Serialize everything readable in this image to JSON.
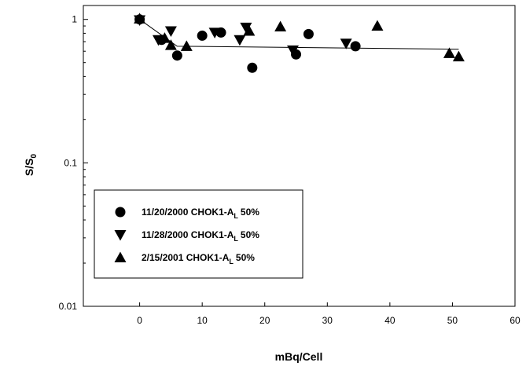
{
  "chart_data": {
    "type": "scatter",
    "xlabel": "mBq/Cell",
    "ylabel_main": "S/S",
    "ylabel_sub": "0",
    "x_ticks": [
      0,
      10,
      20,
      30,
      40,
      50,
      60
    ],
    "y_ticks": [
      0.01,
      0.1,
      1
    ],
    "xlim": [
      -9,
      60
    ],
    "ylim": [
      0.01,
      1.25
    ],
    "y_scale": "log",
    "grid": false,
    "legend_position": "bottom-left",
    "series": [
      {
        "name": "11/20/2000 CHOK1-A",
        "name_sub": "L",
        "name_suffix": "50%",
        "marker": "circle",
        "x": [
          0,
          3.5,
          6,
          10,
          13,
          18,
          25,
          27,
          34.5
        ],
        "y": [
          1.0,
          0.72,
          0.56,
          0.77,
          0.81,
          0.46,
          0.57,
          0.79,
          0.65
        ]
      },
      {
        "name": "11/28/2000 CHOK1-A",
        "name_sub": "L",
        "name_suffix": "50%",
        "marker": "triangle-down",
        "x": [
          0,
          3,
          5,
          12,
          16,
          17,
          24.5,
          33
        ],
        "y": [
          0.99,
          0.72,
          0.83,
          0.81,
          0.72,
          0.88,
          0.61,
          0.68
        ]
      },
      {
        "name": "2/15/2001 CHOK1-A",
        "name_sub": "L",
        "name_suffix": "50%",
        "marker": "triangle-up",
        "x": [
          0,
          4,
          5,
          7.5,
          17.5,
          22.5,
          38,
          49.5,
          51
        ],
        "y": [
          1.01,
          0.74,
          0.66,
          0.65,
          0.83,
          0.89,
          0.9,
          0.58,
          0.55
        ]
      }
    ],
    "fit_line": {
      "x": [
        0,
        6,
        51
      ],
      "y": [
        1.0,
        0.65,
        0.62
      ]
    }
  }
}
